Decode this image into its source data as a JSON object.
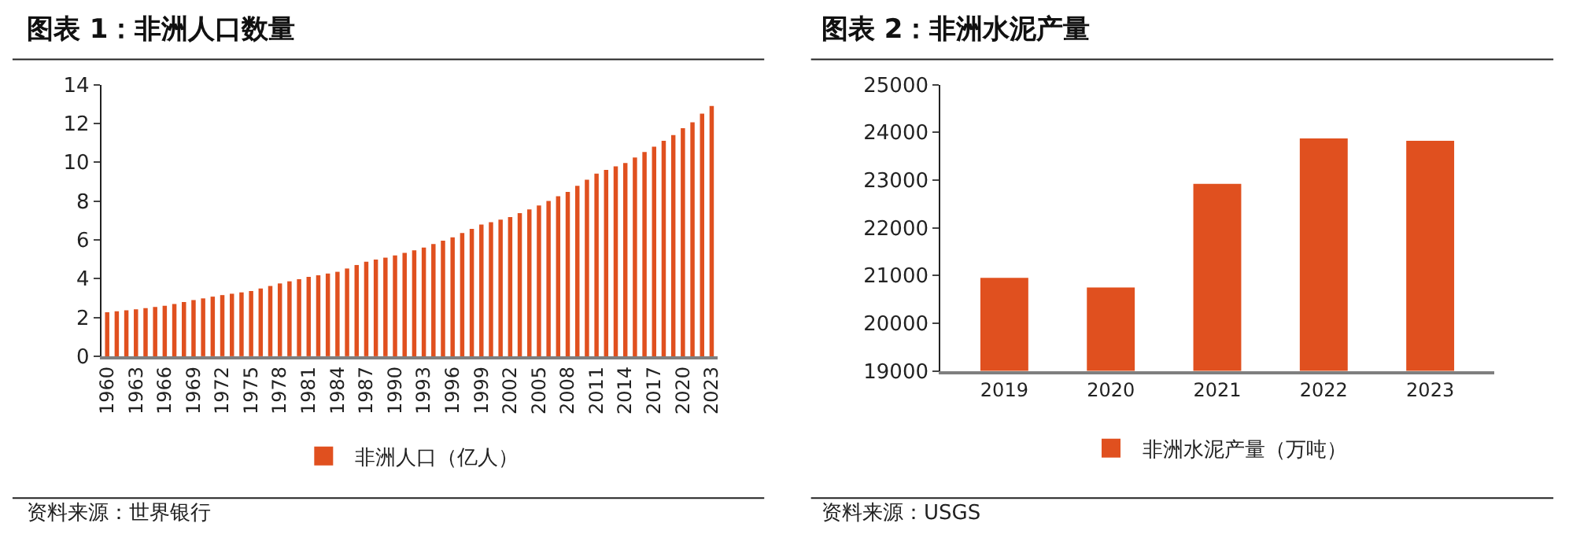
{
  "chart_data": [
    {
      "type": "bar",
      "title": "图表 1：非洲人口数量",
      "categories": [
        "1960",
        null,
        null,
        "1963",
        null,
        null,
        "1966",
        null,
        null,
        "1969",
        null,
        null,
        "1972",
        null,
        null,
        "1975",
        null,
        null,
        "1978",
        null,
        null,
        "1981",
        null,
        null,
        "1984",
        null,
        null,
        "1987",
        null,
        null,
        "1990",
        null,
        null,
        "1993",
        null,
        null,
        "1996",
        null,
        null,
        "1999",
        null,
        null,
        "2002",
        null,
        null,
        "2005",
        null,
        null,
        "2008",
        null,
        null,
        "2011",
        null,
        null,
        "2014",
        null,
        null,
        "2017",
        null,
        null,
        "2020",
        null,
        null,
        "2023"
      ],
      "series": [
        {
          "name": "非洲人口（亿人）",
          "color": "#e0501f",
          "values": [
            2.27,
            2.32,
            2.37,
            2.42,
            2.48,
            2.54,
            2.6,
            2.69,
            2.79,
            2.89,
            2.98,
            3.07,
            3.15,
            3.22,
            3.29,
            3.36,
            3.49,
            3.62,
            3.75,
            3.86,
            3.97,
            4.09,
            4.17,
            4.26,
            4.35,
            4.52,
            4.7,
            4.87,
            4.98,
            5.08,
            5.19,
            5.33,
            5.46,
            5.6,
            5.78,
            5.95,
            6.13,
            6.35,
            6.56,
            6.78,
            6.91,
            7.04,
            7.17,
            7.37,
            7.57,
            7.77,
            8.0,
            8.24,
            8.47,
            8.78,
            9.1,
            9.41,
            9.6,
            9.78,
            9.96,
            10.24,
            10.52,
            10.8,
            11.1,
            11.4,
            11.75,
            12.05,
            12.5,
            12.9
          ]
        }
      ],
      "ylim": [
        0,
        14
      ],
      "yticks": [
        0,
        2,
        4,
        6,
        8,
        10,
        12,
        14
      ],
      "legend": "bottom",
      "annotations": [
        "资料来源：世界银行"
      ]
    },
    {
      "type": "bar",
      "title": "图表 2：非洲水泥产量",
      "categories": [
        "2019",
        "2020",
        "2021",
        "2022",
        "2023"
      ],
      "series": [
        {
          "name": "非洲水泥产量（万吨）",
          "color": "#e0501f",
          "values": [
            20950,
            20750,
            22920,
            23870,
            23820
          ]
        }
      ],
      "ylim": [
        19000,
        25000
      ],
      "yticks": [
        19000,
        20000,
        21000,
        22000,
        23000,
        24000,
        25000
      ],
      "legend": "bottom",
      "annotations": [
        "资料来源：USGS"
      ]
    }
  ]
}
